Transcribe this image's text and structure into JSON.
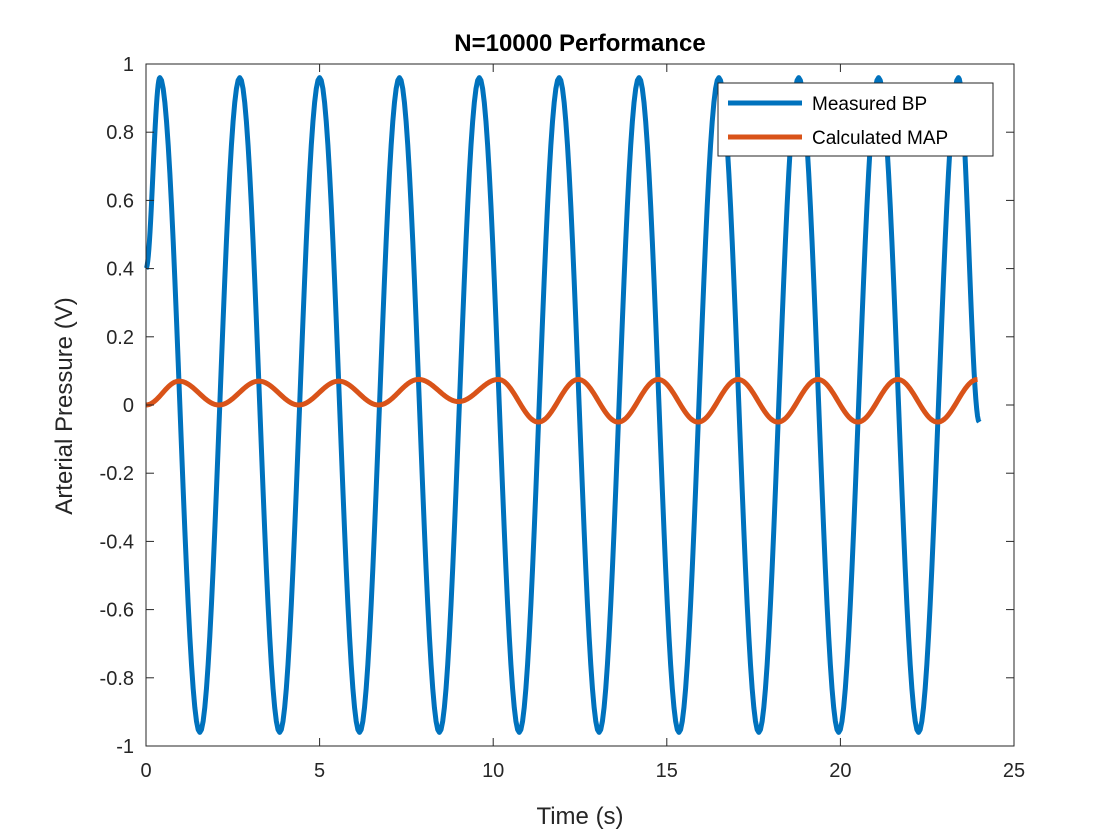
{
  "chart_data": {
    "type": "line",
    "title": "N=10000 Performance",
    "xlabel": "Time (s)",
    "ylabel": "Arterial Pressure (V)",
    "xlim": [
      0,
      25
    ],
    "ylim": [
      -1,
      1
    ],
    "xticks": [
      0,
      5,
      10,
      15,
      20,
      25
    ],
    "yticks": [
      -1,
      -0.8,
      -0.6,
      -0.4,
      -0.2,
      0,
      0.2,
      0.4,
      0.6,
      0.8,
      1
    ],
    "xtick_labels": [
      "0",
      "5",
      "10",
      "15",
      "20",
      "25"
    ],
    "ytick_labels": [
      "-1",
      "-0.8",
      "-0.6",
      "-0.4",
      "-0.2",
      "0",
      "0.2",
      "0.4",
      "0.6",
      "0.8",
      "1"
    ],
    "grid": false,
    "legend_position": "top-right",
    "series": [
      {
        "name": "Measured BP",
        "color": "#0072BD",
        "points": [
          [
            0,
            0.4
          ],
          [
            0.4,
            0.96
          ],
          [
            1.55,
            -0.96
          ],
          [
            2.7,
            0.96
          ],
          [
            3.85,
            -0.96
          ],
          [
            5.0,
            0.96
          ],
          [
            6.15,
            -0.96
          ],
          [
            7.3,
            0.96
          ],
          [
            8.45,
            -0.96
          ],
          [
            9.6,
            0.96
          ],
          [
            10.75,
            -0.96
          ],
          [
            11.9,
            0.96
          ],
          [
            13.05,
            -0.96
          ],
          [
            14.2,
            0.96
          ],
          [
            15.35,
            -0.96
          ],
          [
            16.5,
            0.96
          ],
          [
            17.65,
            -0.96
          ],
          [
            18.8,
            0.96
          ],
          [
            19.95,
            -0.96
          ],
          [
            21.1,
            0.96
          ],
          [
            22.25,
            -0.96
          ],
          [
            23.4,
            0.96
          ],
          [
            24.0,
            -0.05
          ]
        ]
      },
      {
        "name": "Calculated MAP",
        "color": "#D95319",
        "points": [
          [
            0,
            0.0
          ],
          [
            0.95,
            0.07
          ],
          [
            2.1,
            0.0
          ],
          [
            3.25,
            0.07
          ],
          [
            4.4,
            0.0
          ],
          [
            5.55,
            0.07
          ],
          [
            6.7,
            0.0
          ],
          [
            7.85,
            0.075
          ],
          [
            9.0,
            0.01
          ],
          [
            10.15,
            0.075
          ],
          [
            11.3,
            -0.05
          ],
          [
            12.45,
            0.075
          ],
          [
            13.6,
            -0.05
          ],
          [
            14.75,
            0.075
          ],
          [
            15.9,
            -0.05
          ],
          [
            17.05,
            0.075
          ],
          [
            18.2,
            -0.05
          ],
          [
            19.35,
            0.075
          ],
          [
            20.5,
            -0.05
          ],
          [
            21.65,
            0.075
          ],
          [
            22.8,
            -0.05
          ],
          [
            23.95,
            0.075
          ]
        ]
      }
    ]
  }
}
